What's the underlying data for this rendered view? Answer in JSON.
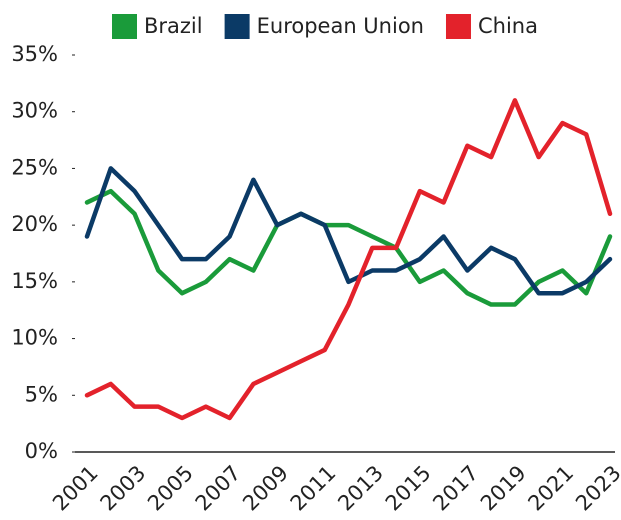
{
  "chart_data": {
    "type": "line",
    "categories": [
      "2001",
      null,
      "2003",
      null,
      "2005",
      null,
      "2007",
      null,
      "2009",
      null,
      "2011",
      null,
      "2013",
      null,
      "2015",
      null,
      "2017",
      null,
      "2019",
      null,
      "2021",
      null,
      "2023"
    ],
    "series": [
      {
        "name": "Brazil",
        "color": "#1a9b3a",
        "values": [
          22,
          23,
          21,
          16,
          14,
          15,
          17,
          16,
          20,
          21,
          20,
          20,
          19,
          18,
          15,
          16,
          14,
          13,
          13,
          15,
          16,
          14,
          19
        ]
      },
      {
        "name": "European Union",
        "color": "#0b3a66",
        "values": [
          19,
          25,
          23,
          20,
          17,
          17,
          19,
          24,
          20,
          21,
          20,
          15,
          16,
          16,
          17,
          19,
          16,
          18,
          17,
          14,
          14,
          15,
          17
        ]
      },
      {
        "name": "China",
        "color": "#e3222b",
        "values": [
          5,
          6,
          4,
          4,
          3,
          4,
          3,
          6,
          7,
          8,
          9,
          13,
          18,
          18,
          23,
          22,
          27,
          26,
          31,
          26,
          29,
          28,
          21
        ]
      }
    ],
    "ylim": [
      0,
      35
    ],
    "yticks": [
      {
        "value": 0,
        "label": "0%"
      },
      {
        "value": 5,
        "label": "5%"
      },
      {
        "value": 10,
        "label": "10%"
      },
      {
        "value": 15,
        "label": "15%"
      },
      {
        "value": 20,
        "label": "20%"
      },
      {
        "value": 25,
        "label": "25%"
      },
      {
        "value": 30,
        "label": "30%"
      },
      {
        "value": 35,
        "label": "35%"
      }
    ],
    "grid": false,
    "legend": "top"
  }
}
